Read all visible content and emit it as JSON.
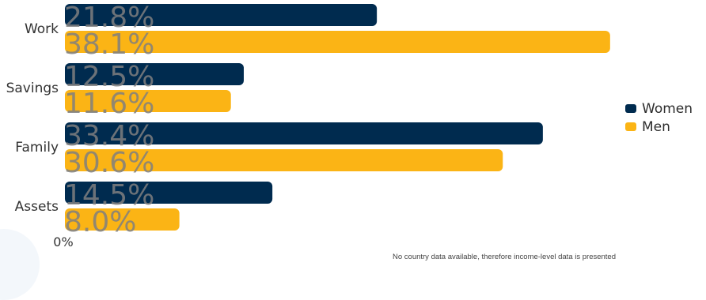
{
  "chart_data": {
    "type": "bar",
    "orientation": "horizontal",
    "categories": [
      "Work",
      "Savings",
      "Family",
      "Assets"
    ],
    "series": [
      {
        "name": "Women",
        "color": "#002b4f",
        "values": [
          21.8,
          12.5,
          33.4,
          14.5
        ],
        "labels": [
          "21.8%",
          "12.5%",
          "33.4%",
          "14.5%"
        ]
      },
      {
        "name": "Men",
        "color": "#fbb415",
        "values": [
          38.1,
          11.6,
          30.6,
          8.0
        ],
        "labels": [
          "38.1%",
          "11.6%",
          "30.6%",
          "8.0%"
        ]
      }
    ],
    "x_tick_label": "0%",
    "xlim": [
      0,
      40
    ],
    "grid": false,
    "legend_position": "right",
    "data_label_color": "#7f7f7f",
    "footnote": "No country data available, therefore income-level data is presented"
  }
}
